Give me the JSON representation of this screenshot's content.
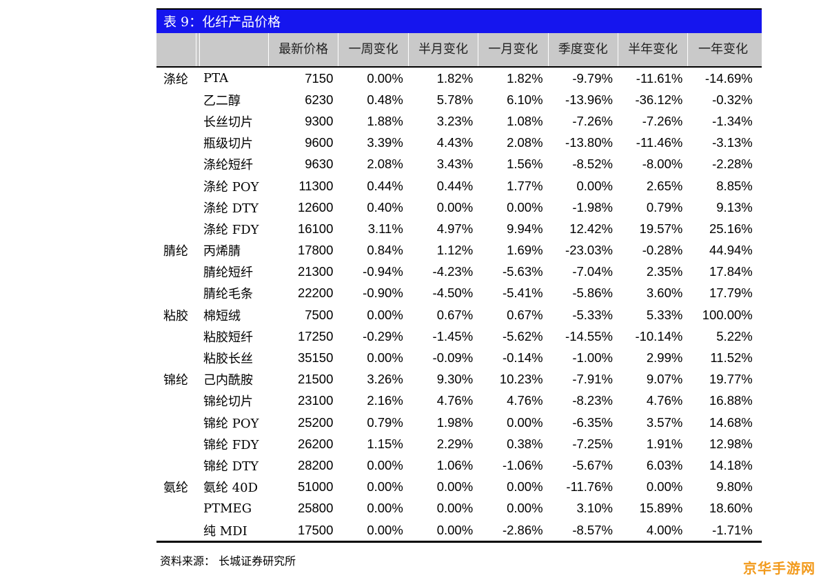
{
  "title": "表 9：化纤产品价格",
  "headers": [
    "最新价格",
    "一周变化",
    "半月变化",
    "一月变化",
    "季度变化",
    "半年变化",
    "一年变化"
  ],
  "rows": [
    {
      "cat": "涤纶",
      "name": "PTA",
      "vals": [
        "7150",
        "0.00%",
        "1.82%",
        "1.82%",
        "-9.79%",
        "-11.61%",
        "-14.69%"
      ]
    },
    {
      "cat": "",
      "name": "乙二醇",
      "vals": [
        "6230",
        "0.48%",
        "5.78%",
        "6.10%",
        "-13.96%",
        "-36.12%",
        "-0.32%"
      ]
    },
    {
      "cat": "",
      "name": "长丝切片",
      "vals": [
        "9300",
        "1.88%",
        "3.23%",
        "1.08%",
        "-7.26%",
        "-7.26%",
        "-1.34%"
      ]
    },
    {
      "cat": "",
      "name": "瓶级切片",
      "vals": [
        "9600",
        "3.39%",
        "4.43%",
        "2.08%",
        "-13.80%",
        "-11.46%",
        "-3.13%"
      ]
    },
    {
      "cat": "",
      "name": "涤纶短纤",
      "vals": [
        "9630",
        "2.08%",
        "3.43%",
        "1.56%",
        "-8.52%",
        "-8.00%",
        "-2.28%"
      ]
    },
    {
      "cat": "",
      "name": "涤纶 POY",
      "vals": [
        "11300",
        "0.44%",
        "0.44%",
        "1.77%",
        "0.00%",
        "2.65%",
        "8.85%"
      ]
    },
    {
      "cat": "",
      "name": "涤纶 DTY",
      "vals": [
        "12600",
        "0.40%",
        "0.00%",
        "0.00%",
        "-1.98%",
        "0.79%",
        "9.13%"
      ]
    },
    {
      "cat": "",
      "name": "涤纶 FDY",
      "vals": [
        "16100",
        "3.11%",
        "4.97%",
        "9.94%",
        "12.42%",
        "19.57%",
        "25.16%"
      ]
    },
    {
      "cat": "腈纶",
      "name": "丙烯腈",
      "vals": [
        "17800",
        "0.84%",
        "1.12%",
        "1.69%",
        "-23.03%",
        "-0.28%",
        "44.94%"
      ]
    },
    {
      "cat": "",
      "name": "腈纶短纤",
      "vals": [
        "21300",
        "-0.94%",
        "-4.23%",
        "-5.63%",
        "-7.04%",
        "2.35%",
        "17.84%"
      ]
    },
    {
      "cat": "",
      "name": "腈纶毛条",
      "vals": [
        "22200",
        "-0.90%",
        "-4.50%",
        "-5.41%",
        "-5.86%",
        "3.60%",
        "17.79%"
      ]
    },
    {
      "cat": "粘胶",
      "name": "棉短绒",
      "vals": [
        "7500",
        "0.00%",
        "0.67%",
        "0.67%",
        "-5.33%",
        "5.33%",
        "100.00%"
      ]
    },
    {
      "cat": "",
      "name": "粘胶短纤",
      "vals": [
        "17250",
        "-0.29%",
        "-1.45%",
        "-5.62%",
        "-14.55%",
        "-10.14%",
        "5.22%"
      ]
    },
    {
      "cat": "",
      "name": "粘胶长丝",
      "vals": [
        "35150",
        "0.00%",
        "-0.09%",
        "-0.14%",
        "-1.00%",
        "2.99%",
        "11.52%"
      ]
    },
    {
      "cat": "锦纶",
      "name": "己内酰胺",
      "vals": [
        "21500",
        "3.26%",
        "9.30%",
        "10.23%",
        "-7.91%",
        "9.07%",
        "19.77%"
      ]
    },
    {
      "cat": "",
      "name": "锦纶切片",
      "vals": [
        "23100",
        "2.16%",
        "4.76%",
        "4.76%",
        "-8.23%",
        "4.76%",
        "16.88%"
      ]
    },
    {
      "cat": "",
      "name": "锦纶 POY",
      "vals": [
        "25200",
        "0.79%",
        "1.98%",
        "0.00%",
        "-6.35%",
        "3.57%",
        "14.68%"
      ]
    },
    {
      "cat": "",
      "name": "锦纶 FDY",
      "vals": [
        "26200",
        "1.15%",
        "2.29%",
        "0.38%",
        "-7.25%",
        "1.91%",
        "12.98%"
      ]
    },
    {
      "cat": "",
      "name": "锦纶 DTY",
      "vals": [
        "28200",
        "0.00%",
        "1.06%",
        "-1.06%",
        "-5.67%",
        "6.03%",
        "14.18%"
      ]
    },
    {
      "cat": "氨纶",
      "name": "氨纶 40D",
      "vals": [
        "51000",
        "0.00%",
        "0.00%",
        "0.00%",
        "-11.76%",
        "0.00%",
        "9.80%"
      ]
    },
    {
      "cat": "",
      "name": "PTMEG",
      "vals": [
        "25800",
        "0.00%",
        "0.00%",
        "0.00%",
        "3.10%",
        "15.89%",
        "18.60%"
      ]
    },
    {
      "cat": "",
      "name": "纯 MDI",
      "vals": [
        "17500",
        "0.00%",
        "0.00%",
        "-2.86%",
        "-8.57%",
        "4.00%",
        "-1.71%"
      ]
    }
  ],
  "source": "资料来源： 长城证券研究所",
  "watermark": "京华手游网"
}
